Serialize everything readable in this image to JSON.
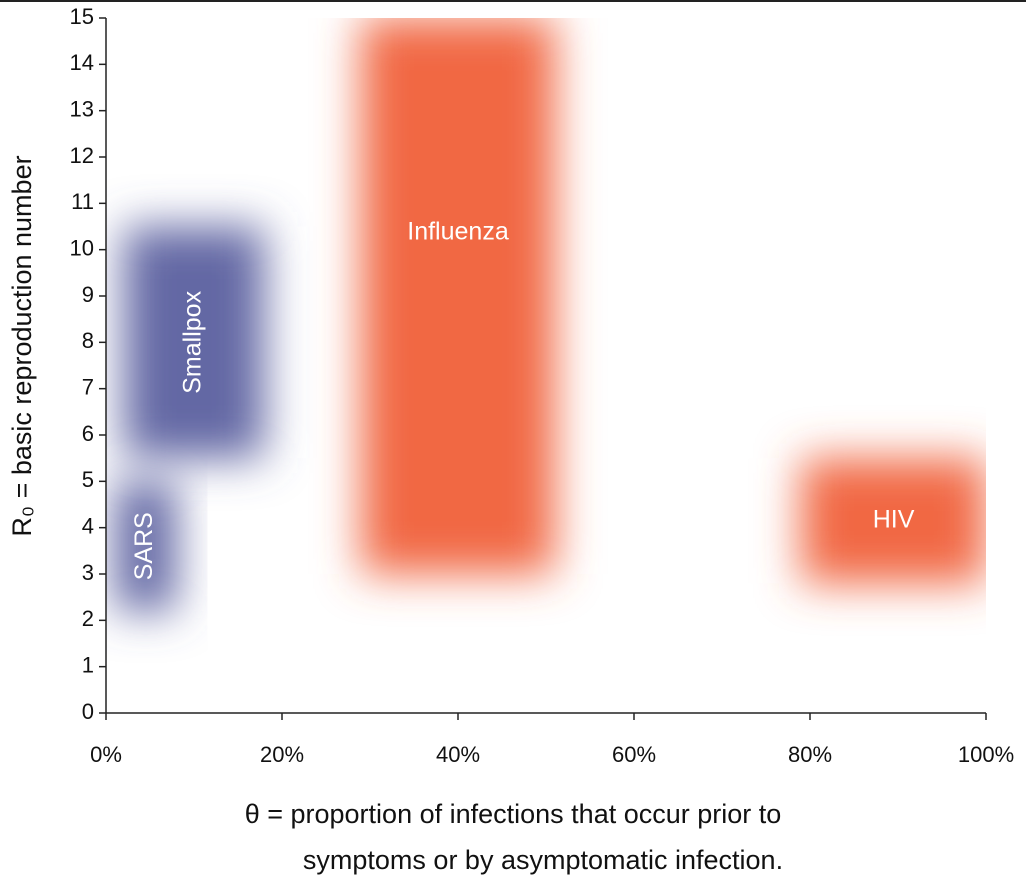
{
  "chart_data": {
    "type": "region",
    "x_label": [
      "θ = proportion of infections that occur prior to",
      "symptoms or by asymptomatic infection."
    ],
    "y_label": "R₀ = basic reproduction number",
    "xlim": [
      0,
      100
    ],
    "xticks": [
      {
        "value": 0,
        "label": "0%"
      },
      {
        "value": 20,
        "label": "20%"
      },
      {
        "value": 40,
        "label": "40%"
      },
      {
        "value": 60,
        "label": "60%"
      },
      {
        "value": 80,
        "label": "80%"
      },
      {
        "value": 100,
        "label": "100%"
      }
    ],
    "ylim": [
      0,
      15
    ],
    "yticks": [
      0,
      1,
      2,
      3,
      4,
      5,
      6,
      7,
      8,
      9,
      10,
      11,
      12,
      13,
      14,
      15
    ],
    "regions": [
      {
        "name": "SARS",
        "color": "#5b5f9f",
        "x": [
          1,
          8
        ],
        "y": [
          2.2,
          5
        ],
        "label_orientation": "vertical"
      },
      {
        "name": "Smallpox",
        "color": "#5b5f9f",
        "x": [
          2,
          18
        ],
        "y": [
          5.5,
          10.5
        ],
        "label_orientation": "vertical"
      },
      {
        "name": "Influenza",
        "color": "#f0603a",
        "x": [
          29,
          51
        ],
        "y": [
          3,
          15
        ],
        "label_orientation": "horizontal"
      },
      {
        "name": "HIV",
        "color": "#f0603a",
        "x": [
          79,
          100
        ],
        "y": [
          2.8,
          5.5
        ],
        "label_orientation": "horizontal"
      }
    ]
  }
}
